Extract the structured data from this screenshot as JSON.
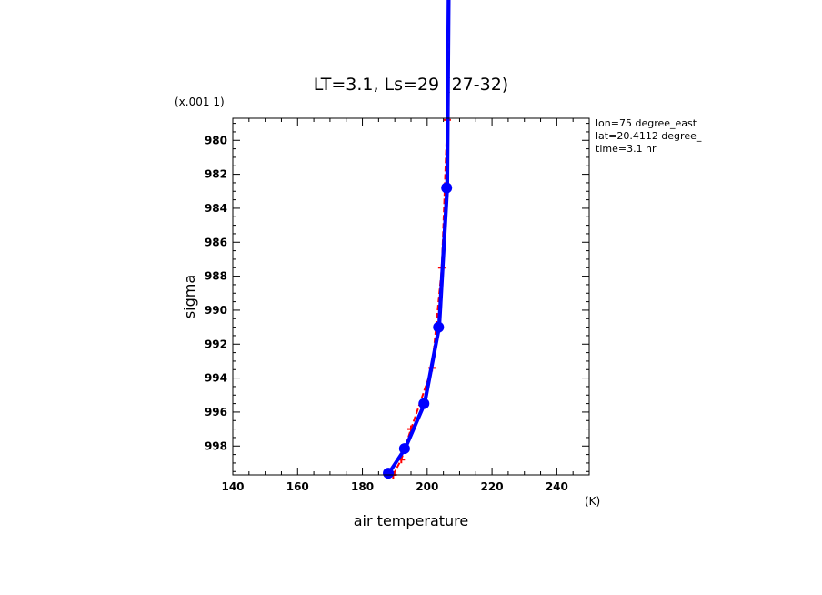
{
  "chart_data": {
    "type": "line",
    "title": "LT=3.1, Ls=29 (27-32)",
    "xlabel": "air temperature",
    "ylabel": "sigma",
    "x_unit": "(K)",
    "y_multiplier": "(x.001 1)",
    "xlim": [
      140,
      250
    ],
    "ylim": [
      999.7,
      978.7
    ],
    "x_ticks": [
      "140",
      "160",
      "180",
      "200",
      "220",
      "240"
    ],
    "y_ticks": [
      "980",
      "982",
      "984",
      "986",
      "988",
      "990",
      "992",
      "994",
      "996",
      "998"
    ],
    "annotations": [
      "lon=75 degree_east",
      "lat=20.4112 degree_",
      "time=3.1 hr"
    ],
    "series": [
      {
        "color": "#0000ff",
        "marker": "circle",
        "x": [
          188,
          193,
          199,
          203.5,
          206,
          206.5
        ],
        "y": [
          999.6,
          998.15,
          995.5,
          991.0,
          982.8,
          970.0
        ]
      },
      {
        "color": "#ff0000",
        "marker": "plus",
        "x": [
          189.5,
          192,
          195,
          201.5,
          204.5,
          206.2,
          207
        ],
        "y": [
          999.7,
          998.8,
          997.0,
          993.4,
          987.5,
          978.8,
          970.0
        ]
      }
    ]
  }
}
